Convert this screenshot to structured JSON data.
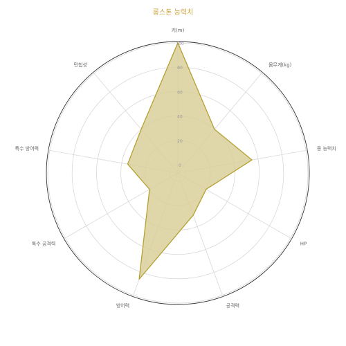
{
  "chart_data": {
    "type": "radar",
    "title": "롱스톤 능력치",
    "axes": [
      "키(m)",
      "몸무게(kg)",
      "종 능력치",
      "HP",
      "공격력",
      "방어력",
      "특수 공격력",
      "특수 방어력",
      "민첩성"
    ],
    "ticks": [
      "0",
      "20",
      "40",
      "60",
      "80",
      "100"
    ],
    "range": [
      0,
      100
    ],
    "series": [
      {
        "values": [
          100,
          40,
          55,
          20,
          30,
          86,
          20,
          35,
          40
        ],
        "color": "#b5a132",
        "fill": "#d9cf9a"
      }
    ],
    "outer_circle_color": "#333333",
    "grid": true
  }
}
